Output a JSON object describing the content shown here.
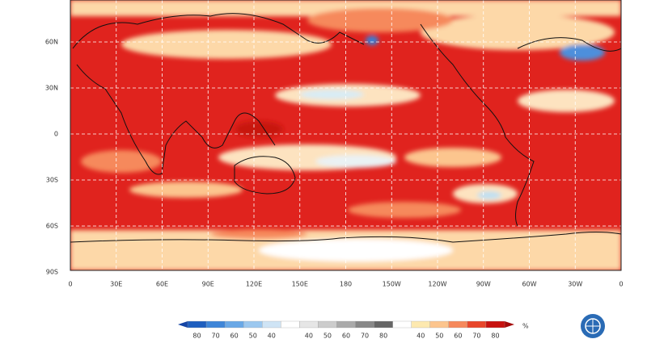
{
  "map": {
    "lat_labels": [
      "60N",
      "30N",
      "0",
      "30S",
      "60S",
      "90S"
    ],
    "lon_labels": [
      "0",
      "30E",
      "60E",
      "90E",
      "120E",
      "150E",
      "180",
      "150W",
      "120W",
      "90W",
      "60W",
      "30W",
      "0"
    ]
  },
  "colorbar": {
    "labels": [
      "80",
      "70",
      "60",
      "50",
      "40",
      "",
      "40",
      "50",
      "60",
      "70",
      "80",
      "",
      "40",
      "50",
      "60",
      "70",
      "80"
    ],
    "unit": "%"
  }
}
